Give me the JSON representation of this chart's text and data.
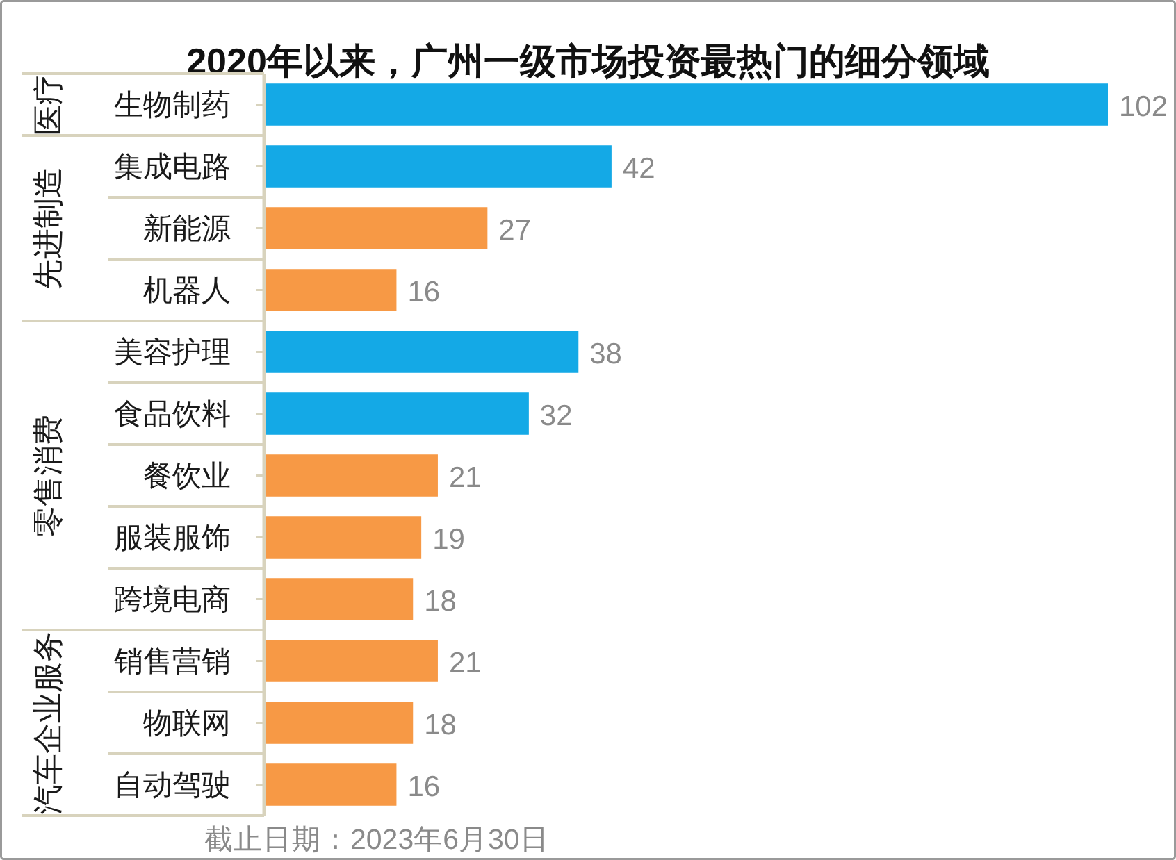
{
  "chart_data": {
    "type": "bar",
    "orientation": "horizontal",
    "title": "2020年以来，广州一级市场投资最热门的细分领域",
    "categories": [
      "生物制药",
      "集成电路",
      "新能源",
      "机器人",
      "美容护理",
      "食品饮料",
      "餐饮业",
      "服装服饰",
      "跨境电商",
      "销售营销",
      "物联网",
      "自动驾驶"
    ],
    "values": [
      102,
      42,
      27,
      16,
      38,
      32,
      21,
      19,
      18,
      21,
      18,
      16
    ],
    "colors": [
      "#14a9e6",
      "#14a9e6",
      "#f79945",
      "#f79945",
      "#14a9e6",
      "#14a9e6",
      "#f79945",
      "#f79945",
      "#f79945",
      "#f79945",
      "#f79945",
      "#f79945"
    ],
    "data_labels": true,
    "annotations": [
      "医疗",
      "先进制造",
      "零售消费",
      "汽车企业服务",
      "截止日期：2023年6月30日"
    ]
  }
}
